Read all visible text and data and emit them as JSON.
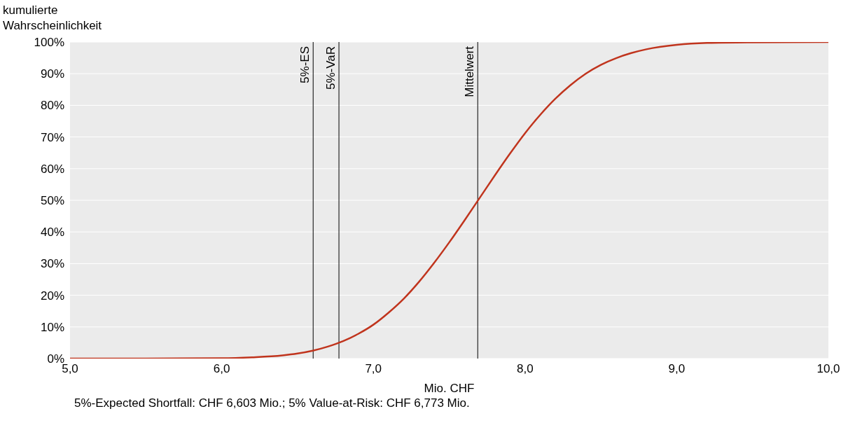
{
  "chart_data": {
    "type": "line",
    "ylabel": "kumulierte\nWahrscheinlichkeit",
    "xlabel": "Mio. CHF",
    "x": [
      5.0,
      5.5,
      6.0,
      6.2,
      6.4,
      6.5,
      6.6,
      6.7,
      6.8,
      6.9,
      7.0,
      7.1,
      7.2,
      7.3,
      7.4,
      7.5,
      7.6,
      7.7,
      7.8,
      7.9,
      8.0,
      8.1,
      8.2,
      8.3,
      8.4,
      8.5,
      8.6,
      8.7,
      8.8,
      9.0,
      9.2,
      9.5,
      10.0
    ],
    "series": [
      {
        "color": "#c0341d",
        "values": [
          0,
          0,
          0.1,
          0.4,
          1.0,
          1.6,
          2.5,
          3.8,
          5.5,
          7.8,
          10.7,
          14.5,
          18.9,
          24.2,
          30.2,
          36.7,
          43.6,
          50.7,
          57.8,
          64.7,
          71.2,
          77.0,
          82.1,
          86.4,
          90.0,
          92.8,
          94.9,
          96.5,
          97.7,
          99.1,
          99.7,
          99.9,
          100
        ]
      }
    ],
    "xlim": [
      5,
      10
    ],
    "xticks": [
      {
        "value": 5,
        "label": "5,0"
      },
      {
        "value": 6,
        "label": "6,0"
      },
      {
        "value": 7,
        "label": "7,0"
      },
      {
        "value": 8,
        "label": "8,0"
      },
      {
        "value": 9,
        "label": "9,0"
      },
      {
        "value": 10,
        "label": "10,0"
      }
    ],
    "ylim": [
      0,
      100
    ],
    "yticks": [
      {
        "value": 0,
        "label": "0%"
      },
      {
        "value": 10,
        "label": "10%"
      },
      {
        "value": 20,
        "label": "20%"
      },
      {
        "value": 30,
        "label": "30%"
      },
      {
        "value": 40,
        "label": "40%"
      },
      {
        "value": 50,
        "label": "50%"
      },
      {
        "value": 60,
        "label": "60%"
      },
      {
        "value": 70,
        "label": "70%"
      },
      {
        "value": 80,
        "label": "80%"
      },
      {
        "value": 90,
        "label": "90%"
      },
      {
        "value": 100,
        "label": "100%"
      }
    ],
    "grid": "y",
    "legend": false,
    "ref_lines": [
      {
        "axis": "x",
        "value": 6.603,
        "label": "5%-ES",
        "color": "#000000"
      },
      {
        "axis": "x",
        "value": 6.773,
        "label": "5%-VaR",
        "color": "#000000"
      },
      {
        "axis": "x",
        "value": 7.688,
        "label": "Mittelwert",
        "color": "#000000"
      }
    ],
    "annotations": [
      "5%-Expected Shortfall: CHF 6,603 Mio.; 5% Value-at-Risk: CHF 6,773 Mio."
    ]
  }
}
